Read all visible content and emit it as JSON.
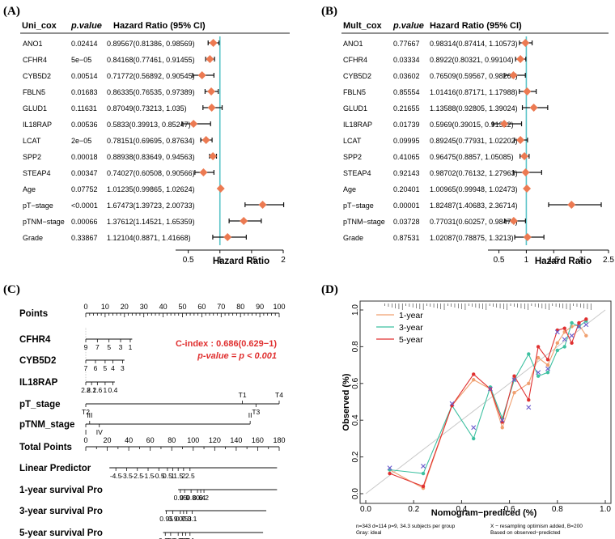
{
  "colors": {
    "diamond": "#ec7a52",
    "refline": "#5cc4c8",
    "series_1year": "#f0a070",
    "series_3year": "#3cc0a0",
    "series_5year": "#e03030",
    "annotation": "#e03030"
  },
  "chart_data": [
    {
      "id": "A",
      "panel_label": "(A)",
      "type": "forest",
      "header_col1": "Uni_cox",
      "header_col2": "p.value",
      "header_col3": "Hazard Ratio (95% CI)",
      "xlabel": "Hazard Ratio",
      "xlim": [
        0.3,
        2
      ],
      "ticks": [
        "0.5",
        "1",
        "1.5",
        "2"
      ],
      "refline": 1,
      "rows": [
        {
          "name": "ANO1",
          "p": "0.02414",
          "ci_text": "0.89567(0.81386, 0.98569)",
          "hr": 0.89567,
          "lo": 0.81386,
          "hi": 0.98569
        },
        {
          "name": "CFHR4",
          "p": "5e−05",
          "ci_text": "0.84168(0.77461, 0.91455)",
          "hr": 0.84168,
          "lo": 0.77461,
          "hi": 0.91455
        },
        {
          "name": "CYB5D2",
          "p": "0.00514",
          "ci_text": "0.71772(0.56892, 0.90545)",
          "hr": 0.71772,
          "lo": 0.56892,
          "hi": 0.90545
        },
        {
          "name": "FBLN5",
          "p": "0.01683",
          "ci_text": "0.86335(0.76535, 0.97389)",
          "hr": 0.86335,
          "lo": 0.76535,
          "hi": 0.97389
        },
        {
          "name": "GLUD1",
          "p": "0.11631",
          "ci_text": "0.87049(0.73213, 1.035)",
          "hr": 0.87049,
          "lo": 0.73213,
          "hi": 1.035
        },
        {
          "name": "IL18RAP",
          "p": "0.00536",
          "ci_text": "0.5833(0.39913, 0.85247)",
          "hr": 0.5833,
          "lo": 0.39913,
          "hi": 0.85247
        },
        {
          "name": "LCAT",
          "p": "2e−05",
          "ci_text": "0.78151(0.69695, 0.87634)",
          "hr": 0.78151,
          "lo": 0.69695,
          "hi": 0.87634
        },
        {
          "name": "SPP2",
          "p": "0.00018",
          "ci_text": "0.88938(0.83649, 0.94563)",
          "hr": 0.88938,
          "lo": 0.83649,
          "hi": 0.94563
        },
        {
          "name": "STEAP4",
          "p": "0.00347",
          "ci_text": "0.74027(0.60508, 0.90566)",
          "hr": 0.74027,
          "lo": 0.60508,
          "hi": 0.90566
        },
        {
          "name": "Age",
          "p": "0.07752",
          "ci_text": "1.01235(0.99865, 1.02624)",
          "hr": 1.01235,
          "lo": 0.99865,
          "hi": 1.02624
        },
        {
          "name": "pT−stage",
          "p": "<0.0001",
          "ci_text": "1.67473(1.39723, 2.00733)",
          "hr": 1.67473,
          "lo": 1.39723,
          "hi": 2.00733
        },
        {
          "name": "pTNM−stage",
          "p": "0.00066",
          "ci_text": "1.37612(1.14521, 1.65359)",
          "hr": 1.37612,
          "lo": 1.14521,
          "hi": 1.65359
        },
        {
          "name": "Grade",
          "p": "0.33867",
          "ci_text": "1.12104(0.8871, 1.41668)",
          "hr": 1.12104,
          "lo": 0.8871,
          "hi": 1.41668
        }
      ]
    },
    {
      "id": "B",
      "panel_label": "(B)",
      "type": "forest",
      "header_col1": "Mult_cox",
      "header_col2": "p.value",
      "header_col3": "Hazard Ratio (95% CI)",
      "xlabel": "Hazard Ratio",
      "xlim": [
        0.3,
        2.5
      ],
      "ticks": [
        "0.5",
        "1",
        "1.5",
        "2",
        "2.5"
      ],
      "refline": 1,
      "rows": [
        {
          "name": "ANO1",
          "p": "0.77667",
          "ci_text": "0.98314(0.87414, 1.10573)",
          "hr": 0.98314,
          "lo": 0.87414,
          "hi": 1.10573
        },
        {
          "name": "CFHR4",
          "p": "0.03334",
          "ci_text": "0.8922(0.80321, 0.99104)",
          "hr": 0.8922,
          "lo": 0.80321,
          "hi": 0.99104
        },
        {
          "name": "CYB5D2",
          "p": "0.03602",
          "ci_text": "0.76509(0.59567, 0.98269)",
          "hr": 0.76509,
          "lo": 0.59567,
          "hi": 0.98269
        },
        {
          "name": "FBLN5",
          "p": "0.85554",
          "ci_text": "1.01416(0.87171, 1.17988)",
          "hr": 1.01416,
          "lo": 0.87171,
          "hi": 1.17988
        },
        {
          "name": "GLUD1",
          "p": "0.21655",
          "ci_text": "1.13588(0.92805, 1.39024)",
          "hr": 1.13588,
          "lo": 0.92805,
          "hi": 1.39024
        },
        {
          "name": "IL18RAP",
          "p": "0.01739",
          "ci_text": "0.5969(0.39015, 0.91322)",
          "hr": 0.5969,
          "lo": 0.39015,
          "hi": 0.91322
        },
        {
          "name": "LCAT",
          "p": "0.09995",
          "ci_text": "0.89245(0.77931, 1.02202)",
          "hr": 0.89245,
          "lo": 0.77931,
          "hi": 1.02202
        },
        {
          "name": "SPP2",
          "p": "0.41065",
          "ci_text": "0.96475(0.8857, 1.05085)",
          "hr": 0.96475,
          "lo": 0.8857,
          "hi": 1.05085
        },
        {
          "name": "STEAP4",
          "p": "0.92143",
          "ci_text": "0.98702(0.76132, 1.27963)",
          "hr": 0.98702,
          "lo": 0.76132,
          "hi": 1.27963
        },
        {
          "name": "Age",
          "p": "0.20401",
          "ci_text": "1.00965(0.99948, 1.02473)",
          "hr": 1.00965,
          "lo": 0.99948,
          "hi": 1.02473
        },
        {
          "name": "pT−stage",
          "p": "0.00001",
          "ci_text": "1.82487(1.40683, 2.36714)",
          "hr": 1.82487,
          "lo": 1.40683,
          "hi": 2.36714
        },
        {
          "name": "pTNM−stage",
          "p": "0.03728",
          "ci_text": "0.77031(0.60257, 0.98474)",
          "hr": 0.77031,
          "lo": 0.60257,
          "hi": 0.98474
        },
        {
          "name": "Grade",
          "p": "0.87531",
          "ci_text": "1.02087(0.78875, 1.3213)",
          "hr": 1.02087,
          "lo": 0.78875,
          "hi": 1.3213
        }
      ]
    },
    {
      "id": "C",
      "panel_label": "(C)",
      "type": "nomogram",
      "annotation_line1": "C-index : 0.686(0.629−1)",
      "annotation_line2": "p-value = p < 0.001",
      "rows": [
        {
          "name": "Points",
          "min": 0,
          "max": 100,
          "step": 10,
          "labels": [
            {
              "v": 0,
              "t": "0"
            },
            {
              "v": 10,
              "t": "10"
            },
            {
              "v": 20,
              "t": "20"
            },
            {
              "v": 30,
              "t": "30"
            },
            {
              "v": 40,
              "t": "40"
            },
            {
              "v": 50,
              "t": "50"
            },
            {
              "v": 60,
              "t": "60"
            },
            {
              "v": 70,
              "t": "70"
            },
            {
              "v": 80,
              "t": "80"
            },
            {
              "v": 90,
              "t": "90"
            },
            {
              "v": 100,
              "t": "100"
            }
          ]
        },
        {
          "name": "CFHR4",
          "min": 0,
          "max": 100,
          "span": [
            0,
            24
          ],
          "labels": [
            {
              "v": 0,
              "t": "9"
            },
            {
              "v": 6,
              "t": "7"
            },
            {
              "v": 12,
              "t": "5"
            },
            {
              "v": 18,
              "t": "3"
            },
            {
              "v": 23,
              "t": "1"
            }
          ]
        },
        {
          "name": "CYB5D2",
          "min": 0,
          "max": 100,
          "span": [
            0,
            20
          ],
          "labels": [
            {
              "v": 0,
              "t": "7"
            },
            {
              "v": 5,
              "t": "6"
            },
            {
              "v": 10,
              "t": "5"
            },
            {
              "v": 14,
              "t": "4"
            },
            {
              "v": 19,
              "t": "3"
            }
          ]
        },
        {
          "name": "IL18RAP",
          "min": 0,
          "max": 100,
          "span": [
            0,
            15
          ],
          "labels": [
            {
              "v": 0,
              "t": "2.8"
            },
            {
              "v": 3,
              "t": "2.2"
            },
            {
              "v": 6,
              "t": "1.6"
            },
            {
              "v": 10,
              "t": "1"
            },
            {
              "v": 14,
              "t": "0.4"
            }
          ]
        },
        {
          "name": "pT_stage",
          "min": 0,
          "max": 100,
          "span": [
            0,
            100
          ],
          "labels": [
            {
              "v": 0,
              "t": "T2",
              "pos": "below"
            },
            {
              "v": 81,
              "t": "T1",
              "pos": "above"
            },
            {
              "v": 88,
              "t": "T3",
              "pos": "below"
            },
            {
              "v": 100,
              "t": "T4",
              "pos": "above"
            }
          ]
        },
        {
          "name": "pTNM_stage",
          "min": 0,
          "max": 100,
          "span": [
            0,
            85
          ],
          "labels": [
            {
              "v": 2,
              "t": "III",
              "pos": "above"
            },
            {
              "v": 85,
              "t": "II",
              "pos": "above"
            },
            {
              "v": 0,
              "t": "I",
              "pos": "below"
            },
            {
              "v": 7,
              "t": "IV",
              "pos": "below"
            }
          ]
        },
        {
          "name": "Total Points",
          "min": 0,
          "max": 180,
          "step": 20,
          "labels": [
            {
              "v": 0,
              "t": "0"
            },
            {
              "v": 20,
              "t": "20"
            },
            {
              "v": 40,
              "t": "40"
            },
            {
              "v": 60,
              "t": "60"
            },
            {
              "v": 80,
              "t": "80"
            },
            {
              "v": 100,
              "t": "100"
            },
            {
              "v": 120,
              "t": "120"
            },
            {
              "v": 140,
              "t": "140"
            },
            {
              "v": 160,
              "t": "160"
            },
            {
              "v": 180,
              "t": "180"
            }
          ]
        },
        {
          "name": "Linear Predictor",
          "min": 0,
          "max": 180,
          "span": [
            22,
            178
          ],
          "labels": [
            {
              "v": 28,
              "t": "-4.5"
            },
            {
              "v": 38,
              "t": "-3.5"
            },
            {
              "v": 48,
              "t": "-2.5"
            },
            {
              "v": 58,
              "t": "-1.5"
            },
            {
              "v": 68,
              "t": "-0.5"
            },
            {
              "v": 76,
              "t": "0.5"
            },
            {
              "v": 81,
              "t": "1"
            },
            {
              "v": 86,
              "t": "1.5"
            },
            {
              "v": 91,
              "t": "2"
            },
            {
              "v": 97,
              "t": "2.5"
            }
          ]
        },
        {
          "name": "1-year survival Pro",
          "min": 0,
          "max": 180,
          "span": [
            86,
            178
          ],
          "labels": [
            {
              "v": 88,
              "t": "0.95"
            },
            {
              "v": 92,
              "t": "0.9"
            },
            {
              "v": 98,
              "t": "0.8"
            },
            {
              "v": 104,
              "t": "0.6"
            },
            {
              "v": 107,
              "t": "0.4"
            },
            {
              "v": 110,
              "t": "0.2"
            }
          ]
        },
        {
          "name": "3-year survival Pro",
          "min": 0,
          "max": 180,
          "span": [
            74,
            168
          ],
          "labels": [
            {
              "v": 75,
              "t": "0.95"
            },
            {
              "v": 81,
              "t": "0.9"
            },
            {
              "v": 88,
              "t": "0.7"
            },
            {
              "v": 91,
              "t": "0.5"
            },
            {
              "v": 94,
              "t": "0.3"
            },
            {
              "v": 99,
              "t": "0.1"
            }
          ]
        },
        {
          "name": "5-year survival Pro",
          "min": 0,
          "max": 180,
          "span": [
            72,
            165
          ],
          "labels": [
            {
              "v": 74,
              "t": "0.95"
            },
            {
              "v": 79,
              "t": "0.9"
            },
            {
              "v": 86,
              "t": "0.7"
            },
            {
              "v": 90,
              "t": "0.5"
            },
            {
              "v": 93,
              "t": "0.3"
            },
            {
              "v": 97,
              "t": "0.1"
            }
          ]
        }
      ]
    },
    {
      "id": "D",
      "panel_label": "(D)",
      "type": "line",
      "xlabel": "Nomogram−prediced (%)",
      "ylabel": "Observed (%)",
      "xlim": [
        0,
        1
      ],
      "ylim": [
        0,
        1
      ],
      "xticks": [
        "0.0",
        "0.2",
        "0.4",
        "0.6",
        "0.8",
        "1.0"
      ],
      "yticks": [
        "0.0",
        "0.2",
        "0.4",
        "0.6",
        "0.8",
        "1.0"
      ],
      "legend_position": "top-left",
      "footnote_left_1": "n=343 d=114 p=9, 34.3 subjects per group",
      "footnote_left_2": "Gray: ideal",
      "footnote_right_1": "X − resampling optimism added, B=200",
      "footnote_right_2": "Based on observed−predicted",
      "series": [
        {
          "name": "1-year",
          "color": "#f0a070",
          "x": [
            0.1,
            0.24,
            0.36,
            0.45,
            0.52,
            0.57,
            0.62,
            0.68,
            0.72,
            0.76,
            0.8,
            0.83,
            0.86,
            0.89,
            0.92
          ],
          "y": [
            0.13,
            0.03,
            0.48,
            0.62,
            0.57,
            0.36,
            0.55,
            0.6,
            0.74,
            0.7,
            0.82,
            0.88,
            0.91,
            0.92,
            0.86
          ]
        },
        {
          "name": "3-year",
          "color": "#3cc0a0",
          "x": [
            0.1,
            0.24,
            0.36,
            0.45,
            0.52,
            0.57,
            0.62,
            0.68,
            0.72,
            0.76,
            0.8,
            0.83,
            0.86,
            0.89,
            0.92
          ],
          "y": [
            0.13,
            0.11,
            0.48,
            0.3,
            0.58,
            0.41,
            0.62,
            0.76,
            0.64,
            0.66,
            0.78,
            0.8,
            0.93,
            0.91,
            0.94
          ]
        },
        {
          "name": "5-year",
          "color": "#e03030",
          "x": [
            0.1,
            0.24,
            0.36,
            0.45,
            0.52,
            0.57,
            0.62,
            0.68,
            0.72,
            0.76,
            0.8,
            0.83,
            0.86,
            0.89,
            0.92
          ],
          "y": [
            0.11,
            0.04,
            0.48,
            0.65,
            0.57,
            0.39,
            0.64,
            0.51,
            0.8,
            0.73,
            0.89,
            0.9,
            0.82,
            0.93,
            0.95
          ]
        }
      ],
      "resample_x": [
        0.1,
        0.24,
        0.36,
        0.45,
        0.52,
        0.57,
        0.62,
        0.68,
        0.72,
        0.76,
        0.8,
        0.83,
        0.86,
        0.89,
        0.92
      ],
      "resample_y": [
        0.14,
        0.15,
        0.49,
        0.36,
        0.57,
        0.4,
        0.62,
        0.47,
        0.66,
        0.68,
        0.88,
        0.84,
        0.86,
        0.91,
        0.92
      ]
    }
  ]
}
